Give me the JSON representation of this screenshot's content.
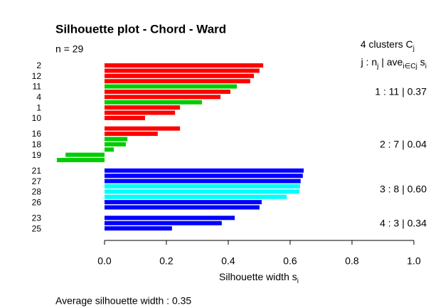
{
  "chart_data": {
    "type": "silhouette",
    "title": "Silhouette plot - Chord - Ward",
    "subtitle": "n = 29",
    "cluster_header": [
      {
        "text": "4  clusters  C"
      },
      {
        "text": "j",
        "sub": true
      }
    ],
    "column_header": [
      {
        "text": "j :  n"
      },
      {
        "text": "j",
        "sub": true
      },
      {
        "text": " | ave"
      },
      {
        "text": "i∈Cj",
        "sub": true
      },
      {
        "text": "  s"
      },
      {
        "text": "i",
        "sub": true
      }
    ],
    "x_label": [
      {
        "text": "Silhouette width s"
      },
      {
        "text": "i",
        "sub": true
      }
    ],
    "footer": "Average silhouette width :  0.35",
    "xlim": [
      -0.154,
      1.0
    ],
    "xticks": [
      {
        "value": 0,
        "label": "0.0"
      },
      0.2,
      0.4,
      0.6,
      0.8,
      {
        "value": 1,
        "label": "1.0"
      }
    ],
    "series": [
      {
        "name": "1 :   11  |  0.37",
        "categories": [
          "2",
          null,
          "12",
          null,
          "11",
          null,
          "4",
          null,
          "1",
          null,
          "10"
        ],
        "values": [
          0.513,
          0.501,
          0.483,
          0.471,
          0.428,
          0.407,
          0.375,
          0.315,
          0.244,
          0.228,
          0.131
        ],
        "colors": [
          "#ff0000",
          "#ff0000",
          "#ff0000",
          "#ff0000",
          "#00cd00",
          "#ff0000",
          "#ff0000",
          "#00cd00",
          "#ff0000",
          "#ff0000",
          "#ff0000"
        ]
      },
      {
        "name": "2 :   7  |  0.04",
        "categories": [
          null,
          "16",
          null,
          "18",
          null,
          "19",
          null
        ],
        "values": [
          0.244,
          0.172,
          0.074,
          0.069,
          0.03,
          -0.126,
          -0.154
        ],
        "colors": [
          "#ff0000",
          "#ff0000",
          "#00cd00",
          "#00cd00",
          "#00cd00",
          "#00cd00",
          "#00cd00"
        ]
      },
      {
        "name": "3 :   8  |  0.60",
        "categories": [
          "21",
          null,
          "27",
          null,
          "28",
          null,
          "26",
          null
        ],
        "values": [
          0.644,
          0.641,
          0.634,
          0.632,
          0.63,
          0.589,
          0.508,
          0.501
        ],
        "colors": [
          "#0000ff",
          "#0000ff",
          "#0000ff",
          "#00ffff",
          "#00ffff",
          "#00ffff",
          "#0000ff",
          "#0000ff"
        ]
      },
      {
        "name": "4 :   3  |  0.34",
        "categories": [
          "23",
          null,
          "25"
        ],
        "values": [
          0.421,
          0.379,
          0.218
        ],
        "colors": [
          "#0000ff",
          "#0000ff",
          "#0000ff"
        ]
      }
    ]
  }
}
